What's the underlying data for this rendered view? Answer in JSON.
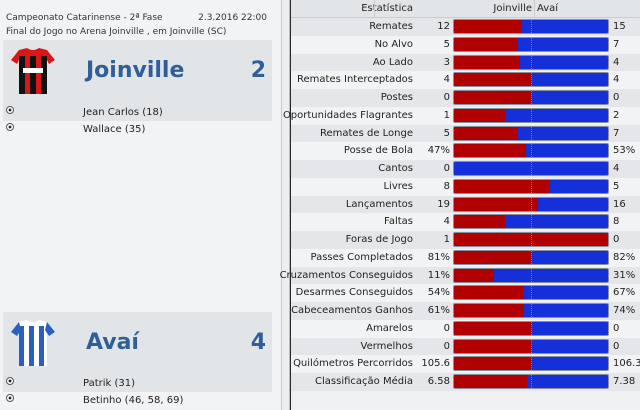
{
  "match": {
    "competition": "Campeonato Catarinense - 2ª Fase",
    "datetime": "2.3.2016 22:00",
    "result_line": "Final do Jogo no Arena Joinville , em Joinville (SC)"
  },
  "home": {
    "name": "Joinville",
    "score": "2",
    "shirt_colors": [
      "#d81818",
      "#111111"
    ],
    "scorers": [
      "Jean Carlos (18)",
      "Wallace (35)"
    ]
  },
  "away": {
    "name": "Avaí",
    "score": "4",
    "shirt_colors": [
      "#2a5fc0",
      "#ffffff"
    ],
    "scorers": [
      "Patrik (31)",
      "Betinho (46, 58, 69)"
    ]
  },
  "stats_header": {
    "label": "Estatística",
    "home": "Joinville",
    "away": "Avaí"
  },
  "colors": {
    "home_bar": "#b00000",
    "away_bar": "#1530d8"
  },
  "stats": [
    {
      "label": "Remates",
      "home": "12",
      "away": "15"
    },
    {
      "label": "No Alvo",
      "home": "5",
      "away": "7"
    },
    {
      "label": "Ao Lado",
      "home": "3",
      "away": "4"
    },
    {
      "label": "Remates Interceptados",
      "home": "4",
      "away": "4"
    },
    {
      "label": "Postes",
      "home": "0",
      "away": "0"
    },
    {
      "label": "Oportunidades Flagrantes",
      "home": "1",
      "away": "2"
    },
    {
      "label": "Remates de Longe",
      "home": "5",
      "away": "7"
    },
    {
      "label": "Posse de Bola",
      "home": "47%",
      "away": "53%"
    },
    {
      "label": "Cantos",
      "home": "0",
      "away": "4"
    },
    {
      "label": "Livres",
      "home": "8",
      "away": "5"
    },
    {
      "label": "Lançamentos",
      "home": "19",
      "away": "16"
    },
    {
      "label": "Faltas",
      "home": "4",
      "away": "8"
    },
    {
      "label": "Foras de Jogo",
      "home": "1",
      "away": "0"
    },
    {
      "label": "Passes Completados",
      "home": "81%",
      "away": "82%"
    },
    {
      "label": "Cruzamentos Conseguidos",
      "home": "11%",
      "away": "31%"
    },
    {
      "label": "Desarmes Conseguidos",
      "home": "54%",
      "away": "67%"
    },
    {
      "label": "Cabeceamentos Ganhos",
      "home": "61%",
      "away": "74%"
    },
    {
      "label": "Amarelos",
      "home": "0",
      "away": "0"
    },
    {
      "label": "Vermelhos",
      "home": "0",
      "away": "0"
    },
    {
      "label": "Quilómetros Percorridos",
      "home": "105.6",
      "away": "106.3"
    },
    {
      "label": "Classificação Média",
      "home": "6.58",
      "away": "7.38"
    }
  ]
}
